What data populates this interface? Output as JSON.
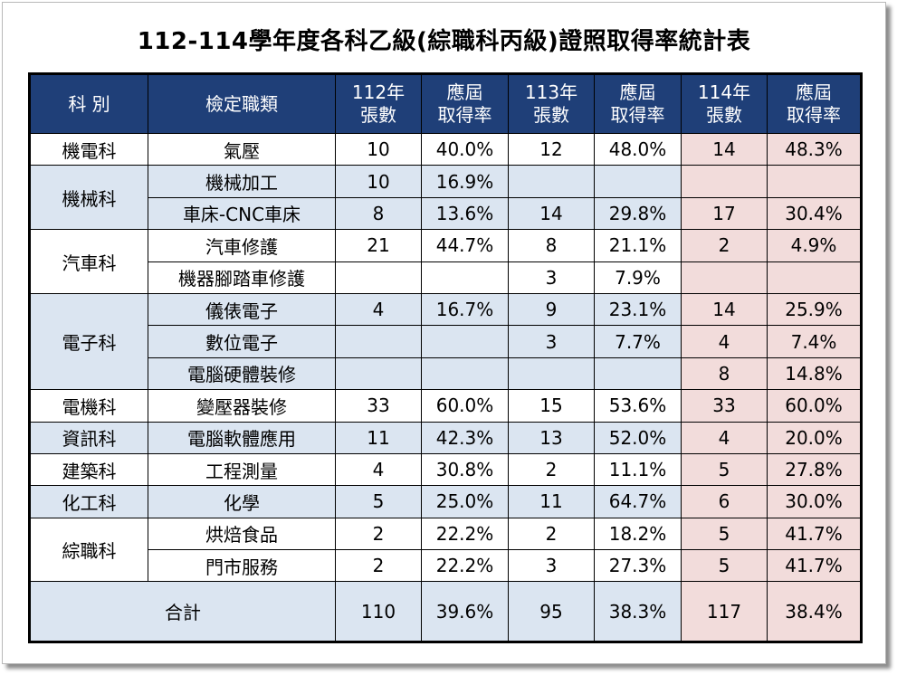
{
  "title": "112-114學年度各科乙級(綜職科丙級)證照取得率統計表",
  "headers": {
    "dept": "科 別",
    "job": "檢定職類",
    "y112_line1": "112年",
    "y112_line2": "張數",
    "r112_line1": "應屆",
    "r112_line2": "取得率",
    "y113_line1": "113年",
    "y113_line2": "張數",
    "r113_line1": "應屆",
    "r113_line2": "取得率",
    "y114_line1": "114年",
    "y114_line2": "張數",
    "r114_line1": "應屆",
    "r114_line2": "取得率"
  },
  "rows": [
    {
      "dept": "機電科",
      "job": "氣壓",
      "c112": "10",
      "r112": "40.0%",
      "c113": "12",
      "r113": "48.0%",
      "c114": "14",
      "r114": "48.3%"
    },
    {
      "dept": "機械科",
      "job": "機械加工",
      "c112": "10",
      "r112": "16.9%",
      "c113": "",
      "r113": "",
      "c114": "",
      "r114": ""
    },
    {
      "dept": "",
      "job": "車床-CNC車床",
      "c112": "8",
      "r112": "13.6%",
      "c113": "14",
      "r113": "29.8%",
      "c114": "17",
      "r114": "30.4%"
    },
    {
      "dept": "汽車科",
      "job": "汽車修護",
      "c112": "21",
      "r112": "44.7%",
      "c113": "8",
      "r113": "21.1%",
      "c114": "2",
      "r114": "4.9%"
    },
    {
      "dept": "",
      "job": "機器腳踏車修護",
      "c112": "",
      "r112": "",
      "c113": "3",
      "r113": "7.9%",
      "c114": "",
      "r114": ""
    },
    {
      "dept": "電子科",
      "job": "儀俵電子",
      "c112": "4",
      "r112": "16.7%",
      "c113": "9",
      "r113": "23.1%",
      "c114": "14",
      "r114": "25.9%"
    },
    {
      "dept": "",
      "job": "數位電子",
      "c112": "",
      "r112": "",
      "c113": "3",
      "r113": "7.7%",
      "c114": "4",
      "r114": "7.4%"
    },
    {
      "dept": "",
      "job": "電腦硬體裝修",
      "c112": "",
      "r112": "",
      "c113": "",
      "r113": "",
      "c114": "8",
      "r114": "14.8%"
    },
    {
      "dept": "電機科",
      "job": "變壓器裝修",
      "c112": "33",
      "r112": "60.0%",
      "c113": "15",
      "r113": "53.6%",
      "c114": "33",
      "r114": "60.0%"
    },
    {
      "dept": "資訊科",
      "job": "電腦軟體應用",
      "c112": "11",
      "r112": "42.3%",
      "c113": "13",
      "r113": "52.0%",
      "c114": "4",
      "r114": "20.0%"
    },
    {
      "dept": "建築科",
      "job": "工程測量",
      "c112": "4",
      "r112": "30.8%",
      "c113": "2",
      "r113": "11.1%",
      "c114": "5",
      "r114": "27.8%"
    },
    {
      "dept": "化工科",
      "job": "化學",
      "c112": "5",
      "r112": "25.0%",
      "c113": "11",
      "r113": "64.7%",
      "c114": "6",
      "r114": "30.0%"
    },
    {
      "dept": "綜職科",
      "job": "烘焙食品",
      "c112": "2",
      "r112": "22.2%",
      "c113": "2",
      "r113": "18.2%",
      "c114": "5",
      "r114": "41.7%"
    },
    {
      "dept": "",
      "job": "門市服務",
      "c112": "2",
      "r112": "22.2%",
      "c113": "3",
      "r113": "27.3%",
      "c114": "5",
      "r114": "41.7%"
    }
  ],
  "total": {
    "label": "合計",
    "c112": "110",
    "r112": "39.6%",
    "c113": "95",
    "r113": "38.3%",
    "c114": "117",
    "r114": "38.4%"
  },
  "colors": {
    "header_bg": "#1f3f78",
    "blue_band": "#dbe5f1",
    "pink_band": "#f2dcdb"
  }
}
